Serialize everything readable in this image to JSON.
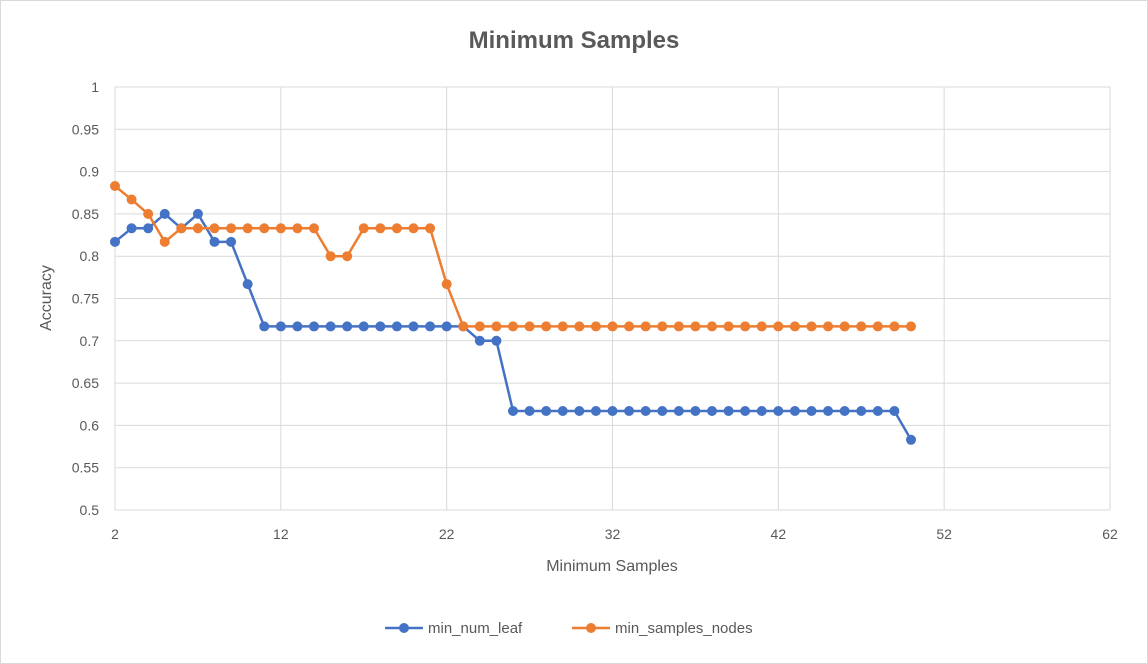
{
  "chart_data": {
    "type": "line",
    "title": "Minimum Samples",
    "xlabel": "Minimum Samples",
    "ylabel": "Accuracy",
    "xlim": [
      2,
      62
    ],
    "ylim": [
      0.5,
      1
    ],
    "x_ticks": [
      2,
      12,
      22,
      32,
      42,
      52,
      62
    ],
    "x_tick_labels": [
      "2",
      "12",
      "22",
      "32",
      "42",
      "52",
      "62"
    ],
    "y_ticks": [
      0.5,
      0.55,
      0.6,
      0.65,
      0.7,
      0.75,
      0.8,
      0.85,
      0.9,
      0.95,
      1
    ],
    "y_tick_labels": [
      "0.5",
      "0.55",
      "0.6",
      "0.65",
      "0.7",
      "0.75",
      "0.8",
      "0.85",
      "0.9",
      "0.95",
      "1"
    ],
    "grid": true,
    "legend_position": "bottom",
    "series": [
      {
        "name": "min_num_leaf",
        "color": "#4472C4",
        "x": [
          2,
          3,
          4,
          5,
          6,
          7,
          8,
          9,
          10,
          11,
          12,
          13,
          14,
          15,
          16,
          17,
          18,
          19,
          20,
          21,
          22,
          23,
          24,
          25,
          26,
          27,
          28,
          29,
          30,
          31,
          32,
          33,
          34,
          35,
          36,
          37,
          38,
          39,
          40,
          41,
          42,
          43,
          44,
          45,
          46,
          47,
          48,
          49,
          50
        ],
        "values": [
          0.817,
          0.833,
          0.833,
          0.85,
          0.833,
          0.85,
          0.817,
          0.817,
          0.767,
          0.717,
          0.717,
          0.717,
          0.717,
          0.717,
          0.717,
          0.717,
          0.717,
          0.717,
          0.717,
          0.717,
          0.717,
          0.717,
          0.7,
          0.7,
          0.617,
          0.617,
          0.617,
          0.617,
          0.617,
          0.617,
          0.617,
          0.617,
          0.617,
          0.617,
          0.617,
          0.617,
          0.617,
          0.617,
          0.617,
          0.617,
          0.617,
          0.617,
          0.617,
          0.617,
          0.617,
          0.617,
          0.617,
          0.617,
          0.583
        ]
      },
      {
        "name": "min_samples_nodes",
        "color": "#ED7D31",
        "x": [
          2,
          3,
          4,
          5,
          6,
          7,
          8,
          9,
          10,
          11,
          12,
          13,
          14,
          15,
          16,
          17,
          18,
          19,
          20,
          21,
          22,
          23,
          24,
          25,
          26,
          27,
          28,
          29,
          30,
          31,
          32,
          33,
          34,
          35,
          36,
          37,
          38,
          39,
          40,
          41,
          42,
          43,
          44,
          45,
          46,
          47,
          48,
          49,
          50
        ],
        "values": [
          0.883,
          0.867,
          0.85,
          0.817,
          0.833,
          0.833,
          0.833,
          0.833,
          0.833,
          0.833,
          0.833,
          0.833,
          0.833,
          0.8,
          0.8,
          0.833,
          0.833,
          0.833,
          0.833,
          0.833,
          0.767,
          0.717,
          0.717,
          0.717,
          0.717,
          0.717,
          0.717,
          0.717,
          0.717,
          0.717,
          0.717,
          0.717,
          0.717,
          0.717,
          0.717,
          0.717,
          0.717,
          0.717,
          0.717,
          0.717,
          0.717,
          0.717,
          0.717,
          0.717,
          0.717,
          0.717,
          0.717,
          0.717,
          0.717
        ]
      }
    ]
  }
}
